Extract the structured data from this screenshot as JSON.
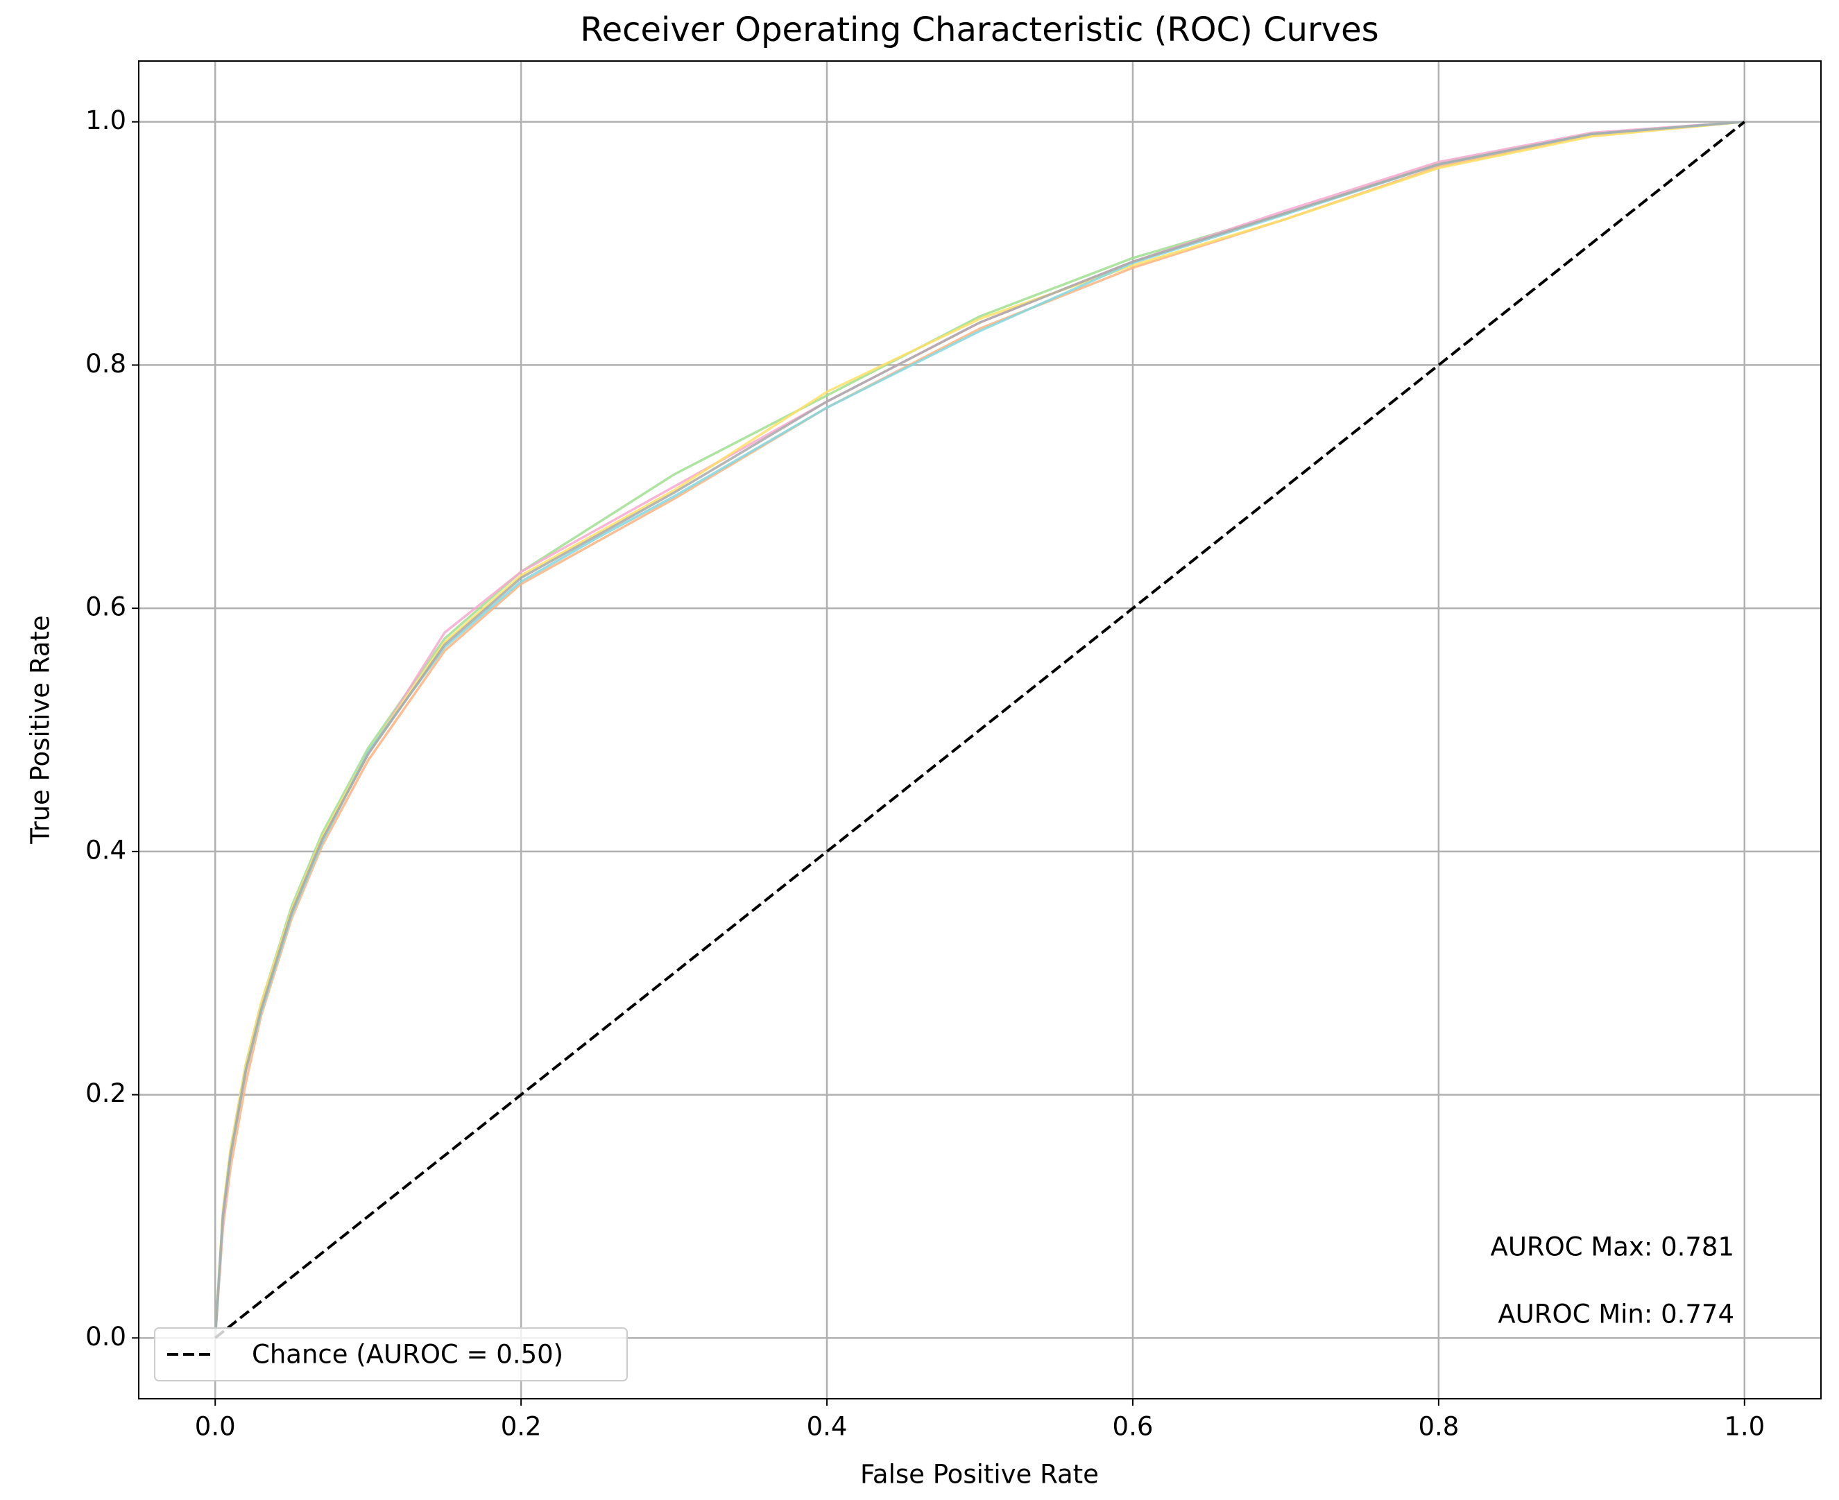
{
  "chart_data": {
    "type": "line",
    "title": "Receiver Operating Characteristic (ROC) Curves",
    "x_label": "False Positive Rate",
    "y_label": "True Positive Rate",
    "x": [
      0,
      0.005,
      0.01,
      0.02,
      0.03,
      0.05,
      0.07,
      0.1,
      0.15,
      0.2,
      0.25,
      0.3,
      0.4,
      0.5,
      0.6,
      0.7,
      0.8,
      0.9,
      1.0
    ],
    "series": [
      {
        "color": "#ffb27f",
        "values": [
          0,
          0.09,
          0.14,
          0.21,
          0.265,
          0.345,
          0.405,
          0.475,
          0.565,
          0.62,
          0.655,
          0.69,
          0.765,
          0.83,
          0.88,
          0.92,
          0.963,
          0.989,
          1
        ]
      },
      {
        "color": "#9fdf8f",
        "values": [
          0,
          0.1,
          0.155,
          0.225,
          0.275,
          0.355,
          0.415,
          0.485,
          0.575,
          0.63,
          0.67,
          0.71,
          0.775,
          0.84,
          0.888,
          0.925,
          0.966,
          0.99,
          1
        ]
      },
      {
        "color": "#f7a8d0",
        "values": [
          0,
          0.095,
          0.15,
          0.22,
          0.27,
          0.35,
          0.41,
          0.48,
          0.58,
          0.63,
          0.665,
          0.7,
          0.77,
          0.835,
          0.885,
          0.927,
          0.967,
          0.991,
          1
        ]
      },
      {
        "color": "#ffe066",
        "values": [
          0,
          0.105,
          0.155,
          0.225,
          0.275,
          0.352,
          0.412,
          0.482,
          0.572,
          0.627,
          0.662,
          0.697,
          0.778,
          0.838,
          0.882,
          0.92,
          0.962,
          0.988,
          1
        ]
      },
      {
        "color": "#80d8e0",
        "values": [
          0,
          0.1,
          0.15,
          0.22,
          0.268,
          0.348,
          0.408,
          0.482,
          0.568,
          0.622,
          0.658,
          0.692,
          0.765,
          0.828,
          0.884,
          0.924,
          0.965,
          0.99,
          1
        ]
      },
      {
        "color": "#a9a9a9",
        "values": [
          0,
          0.1,
          0.15,
          0.22,
          0.27,
          0.35,
          0.41,
          0.48,
          0.57,
          0.625,
          0.66,
          0.695,
          0.77,
          0.835,
          0.885,
          0.925,
          0.965,
          0.99,
          1
        ]
      }
    ],
    "chance": {
      "name": "Chance (AUROC = 0.50)",
      "color": "#000000",
      "dashed": true,
      "x": [
        0,
        1
      ],
      "values": [
        0,
        1
      ]
    },
    "annotations": [
      {
        "text": "AUROC Max: 0.781",
        "color": "#008000"
      },
      {
        "text": "AUROC Min: 0.774",
        "color": "#c00000"
      }
    ],
    "xlim": [
      -0.05,
      1.05
    ],
    "ylim": [
      -0.05,
      1.05
    ],
    "xticks": [
      {
        "value": 0,
        "label": "0.0"
      },
      0.2,
      0.4,
      0.6,
      0.8,
      {
        "value": 1,
        "label": "1.0"
      }
    ],
    "yticks": [
      {
        "value": 0,
        "label": "0.0"
      },
      0.2,
      0.4,
      0.6,
      0.8,
      {
        "value": 1,
        "label": "1.0"
      }
    ],
    "grid": true,
    "legend": "lower left"
  }
}
